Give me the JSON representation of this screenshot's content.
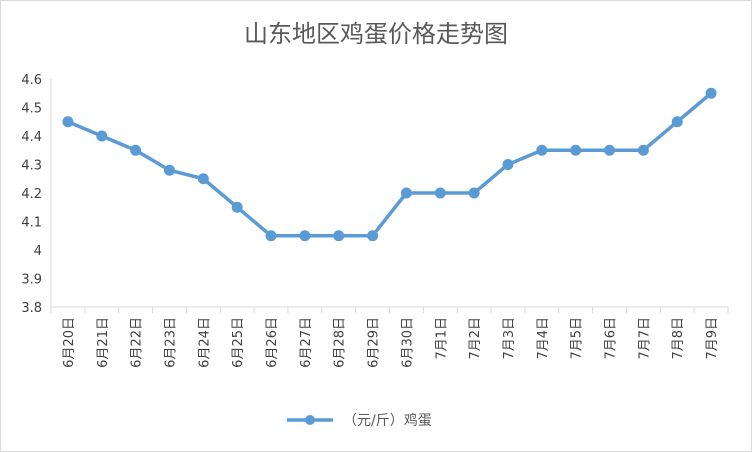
{
  "chart_data": {
    "type": "line",
    "title": "山东地区鸡蛋价格走势图",
    "categories": [
      "6月20日",
      "6月21日",
      "6月22日",
      "6月23日",
      "6月24日",
      "6月25日",
      "6月26日",
      "6月27日",
      "6月28日",
      "6月29日",
      "6月30日",
      "7月1日",
      "7月2日",
      "7月3日",
      "7月4日",
      "7月5日",
      "7月6日",
      "7月7日",
      "7月8日",
      "7月9日"
    ],
    "series": [
      {
        "name": "（元/斤）鸡蛋",
        "values": [
          4.45,
          4.4,
          4.35,
          4.28,
          4.25,
          4.15,
          4.05,
          4.05,
          4.05,
          4.05,
          4.2,
          4.2,
          4.2,
          4.3,
          4.35,
          4.35,
          4.35,
          4.35,
          4.45,
          4.55
        ]
      }
    ],
    "y_ticks": [
      "3.8",
      "3.9",
      "4",
      "4.1",
      "4.2",
      "4.3",
      "4.4",
      "4.5",
      "4.6"
    ],
    "ylim": [
      3.8,
      4.6
    ],
    "grid": false,
    "legend_position": "bottom",
    "line_color": "#5b9bd5",
    "axis_color": "#d9d9d9"
  }
}
